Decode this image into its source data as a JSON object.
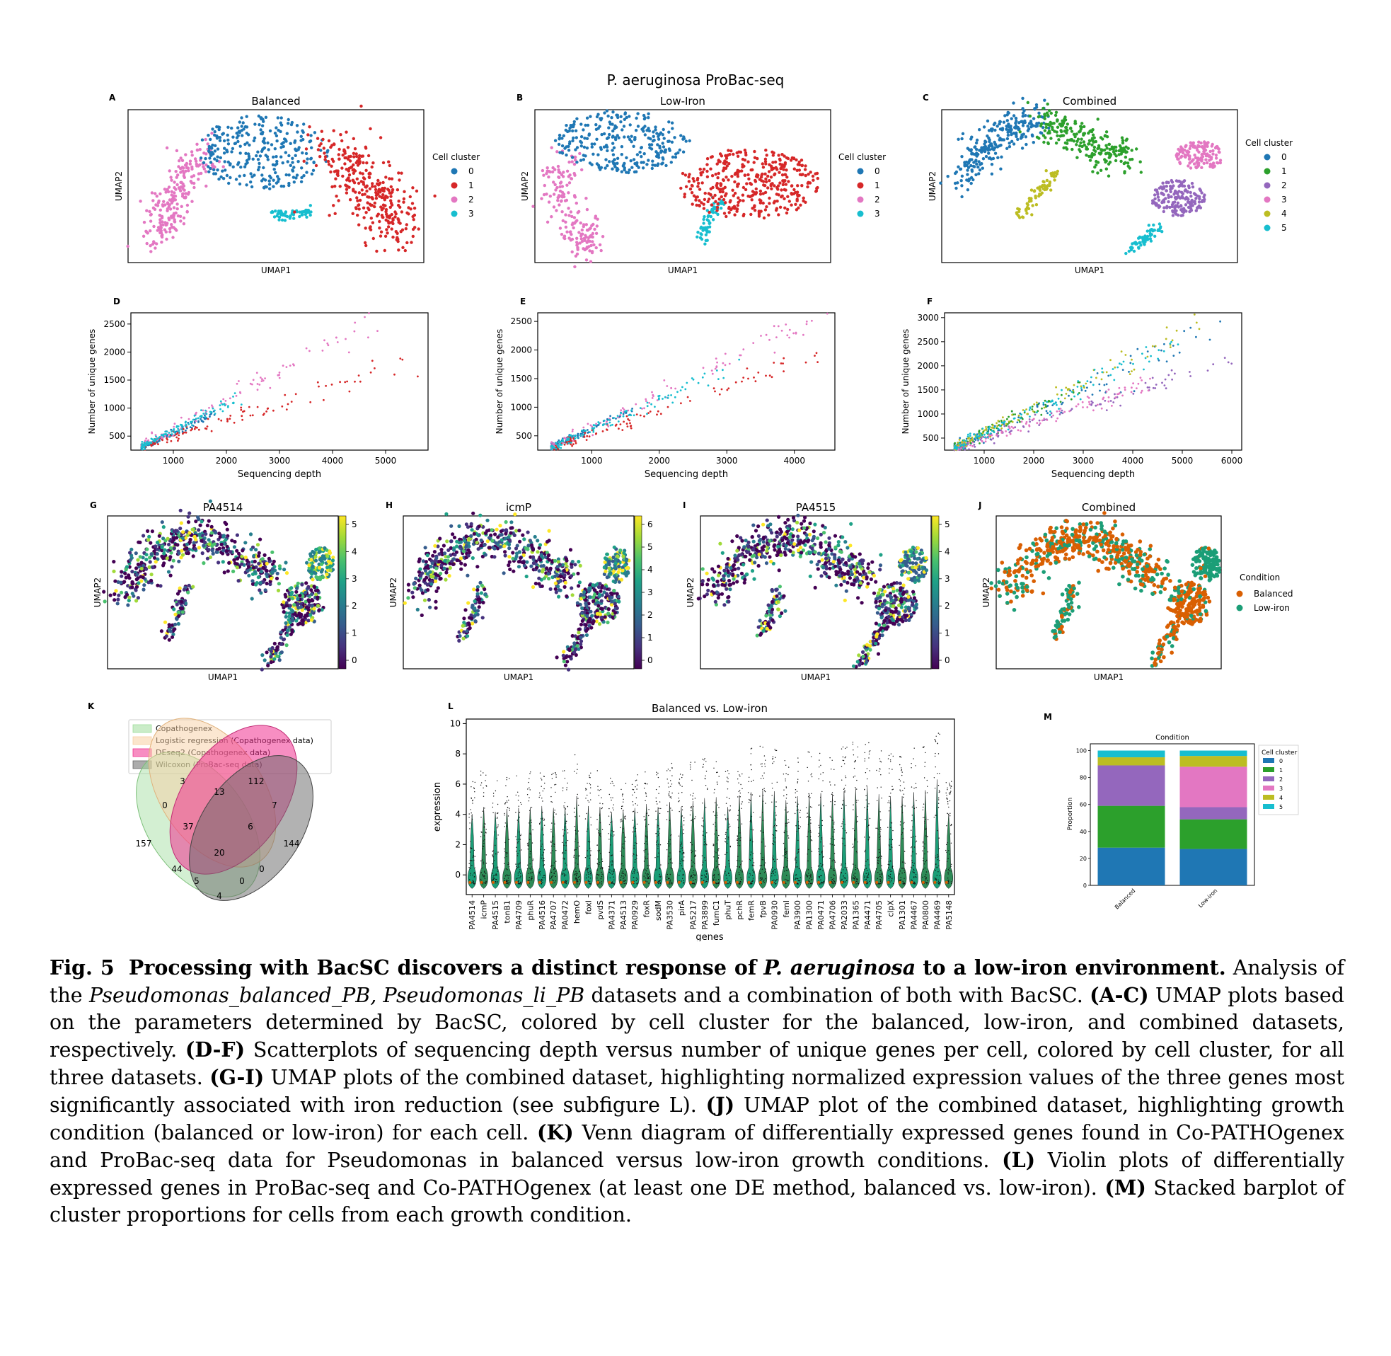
{
  "figure_title": "P. aeruginosa ProBac-seq",
  "panels": {
    "A": {
      "letter": "A",
      "title": "Balanced",
      "xlabel": "UMAP1",
      "ylabel": "UMAP2",
      "legend_title": "Cell cluster",
      "legend": [
        "0",
        "1",
        "2",
        "3"
      ]
    },
    "B": {
      "letter": "B",
      "title": "Low-Iron",
      "xlabel": "UMAP1",
      "ylabel": "UMAP2",
      "legend_title": "Cell cluster",
      "legend": [
        "0",
        "1",
        "2",
        "3"
      ]
    },
    "C": {
      "letter": "C",
      "title": "Combined",
      "xlabel": "UMAP1",
      "ylabel": "UMAP2",
      "legend_title": "Cell cluster",
      "legend": [
        "0",
        "1",
        "2",
        "3",
        "4",
        "5"
      ]
    },
    "D": {
      "letter": "D",
      "xlabel": "Sequencing depth",
      "ylabel": "Number of unique genes"
    },
    "E": {
      "letter": "E",
      "xlabel": "Sequencing depth",
      "ylabel": "Number of unique genes"
    },
    "F": {
      "letter": "F",
      "xlabel": "Sequencing depth",
      "ylabel": "Number of unique genes"
    },
    "G": {
      "letter": "G",
      "title": "PA4514",
      "xlabel": "UMAP1",
      "ylabel": "UMAP2",
      "cbar": [
        "0",
        "1",
        "2",
        "3",
        "4",
        "5"
      ]
    },
    "H": {
      "letter": "H",
      "title": "icmP",
      "xlabel": "UMAP1",
      "ylabel": "UMAP2",
      "cbar": [
        "0",
        "1",
        "2",
        "3",
        "4",
        "5",
        "6"
      ]
    },
    "I": {
      "letter": "I",
      "title": "PA4515",
      "xlabel": "UMAP1",
      "ylabel": "UMAP2",
      "cbar": [
        "0",
        "1",
        "2",
        "3",
        "4",
        "5"
      ]
    },
    "J": {
      "letter": "J",
      "title": "Combined",
      "xlabel": "UMAP1",
      "ylabel": "UMAP2",
      "legend_title": "Condition",
      "legend": [
        "Balanced",
        "Low-iron"
      ]
    },
    "K": {
      "letter": "K"
    },
    "L": {
      "letter": "L",
      "title": "Balanced vs. Low-iron",
      "xlabel": "genes",
      "ylabel": "expression"
    },
    "M": {
      "letter": "M",
      "title": "Condition",
      "ylabel": "Proportion",
      "legend_title": "Cell cluster",
      "legend": [
        "0",
        "1",
        "2",
        "3",
        "4",
        "5"
      ]
    }
  },
  "colors": {
    "c0": "#1f77b4",
    "c1": "#d62728",
    "c2": "#e377c2",
    "c3": "#17becf",
    "t0": "#1f77b4",
    "t1": "#2ca02c",
    "t2": "#9467bd",
    "t3": "#e377c2",
    "t4": "#bcbd22",
    "t5": "#17becf",
    "balanced": "#d95f02",
    "lowiron": "#1b9e77"
  },
  "venn": {
    "legend": [
      "Copathogenex",
      "Logistic regression (Copathogenex data)",
      "DEseq2 (Copathogenex data)",
      "Wilcoxon (ProBac-seq data)"
    ],
    "colors": [
      "#9edc9b",
      "#f7cfa3",
      "#f0328f",
      "#666666"
    ],
    "counts": [
      "3",
      "13",
      "112",
      "0",
      "7",
      "157",
      "37",
      "6",
      "144",
      "20",
      "44",
      "0",
      "5",
      "0",
      "4"
    ]
  },
  "chart_data": [
    {
      "panel": "D",
      "type": "scatter",
      "xlabel": "Sequencing depth",
      "ylabel": "Number of unique genes",
      "xlim": [
        200,
        5800
      ],
      "ylim": [
        250,
        2700
      ],
      "xticks": [
        "1000",
        "2000",
        "3000",
        "4000",
        "5000"
      ],
      "yticks": [
        "500",
        "1000",
        "1500",
        "2000",
        "2500"
      ],
      "series": [
        {
          "cluster": "0",
          "color": "#1f77b4",
          "slope": 0.44,
          "intercept": 120,
          "x_range": [
            400,
            1800
          ],
          "noise": 60
        },
        {
          "cluster": "1",
          "color": "#d62728",
          "slope": 0.3,
          "intercept": 190,
          "x_range": [
            400,
            5700
          ],
          "noise": 70
        },
        {
          "cluster": "2",
          "color": "#e377c2",
          "slope": 0.5,
          "intercept": 130,
          "x_range": [
            400,
            4900
          ],
          "noise": 100
        },
        {
          "cluster": "3",
          "color": "#17becf",
          "slope": 0.46,
          "intercept": 140,
          "x_range": [
            400,
            2300
          ],
          "noise": 60
        }
      ]
    },
    {
      "panel": "E",
      "type": "scatter",
      "xlabel": "Sequencing depth",
      "ylabel": "Number of unique genes",
      "xlim": [
        200,
        4600
      ],
      "ylim": [
        250,
        2650
      ],
      "xticks": [
        "1000",
        "2000",
        "3000",
        "4000"
      ],
      "yticks": [
        "500",
        "1000",
        "1500",
        "2000",
        "2500"
      ],
      "series": [
        {
          "cluster": "0",
          "color": "#1f77b4",
          "slope": 0.55,
          "intercept": 80,
          "x_range": [
            400,
            1600
          ],
          "noise": 50
        },
        {
          "cluster": "1",
          "color": "#d62728",
          "slope": 0.42,
          "intercept": 110,
          "x_range": [
            400,
            4400
          ],
          "noise": 60
        },
        {
          "cluster": "2",
          "color": "#e377c2",
          "slope": 0.58,
          "intercept": 80,
          "x_range": [
            400,
            4500
          ],
          "noise": 90
        },
        {
          "cluster": "3",
          "color": "#17becf",
          "slope": 0.52,
          "intercept": 90,
          "x_range": [
            400,
            3200
          ],
          "noise": 60
        }
      ]
    },
    {
      "panel": "F",
      "type": "scatter",
      "xlabel": "Sequencing depth",
      "ylabel": "Number of unique genes",
      "xlim": [
        200,
        6200
      ],
      "ylim": [
        250,
        3100
      ],
      "xticks": [
        "1000",
        "2000",
        "3000",
        "4000",
        "5000",
        "6000"
      ],
      "yticks": [
        "500",
        "1000",
        "1500",
        "2000",
        "2500",
        "3000"
      ],
      "series": [
        {
          "cluster": "0",
          "color": "#1f77b4",
          "slope": 0.47,
          "intercept": 100,
          "x_range": [
            400,
            5900
          ],
          "noise": 120
        },
        {
          "cluster": "1",
          "color": "#2ca02c",
          "slope": 0.5,
          "intercept": 90,
          "x_range": [
            400,
            3000
          ],
          "noise": 80
        },
        {
          "cluster": "2",
          "color": "#9467bd",
          "slope": 0.33,
          "intercept": 150,
          "x_range": [
            400,
            6000
          ],
          "noise": 70
        },
        {
          "cluster": "3",
          "color": "#e377c2",
          "slope": 0.34,
          "intercept": 140,
          "x_range": [
            400,
            4500
          ],
          "noise": 70
        },
        {
          "cluster": "4",
          "color": "#bcbd22",
          "slope": 0.52,
          "intercept": 90,
          "x_range": [
            400,
            5600
          ],
          "noise": 100
        },
        {
          "cluster": "5",
          "color": "#17becf",
          "slope": 0.49,
          "intercept": 100,
          "x_range": [
            400,
            5200
          ],
          "noise": 100
        }
      ]
    },
    {
      "panel": "L",
      "type": "violin",
      "title": "Balanced vs. Low-iron",
      "xlabel": "genes",
      "ylabel": "expression",
      "ylim": [
        -1.3,
        10.3
      ],
      "yticks": [
        "0",
        "2",
        "4",
        "6",
        "8",
        "10"
      ],
      "genes": [
        "PA4514",
        "icmP",
        "PA4515",
        "tonB1",
        "PA4709",
        "phuR",
        "PA4516",
        "PA4707",
        "PA0472",
        "hemO",
        "foxI",
        "pvdS",
        "PA4371",
        "PA4513",
        "PA0929",
        "foxR",
        "sodM",
        "PA3530",
        "pirA",
        "PA5217",
        "PA3899",
        "fumC1",
        "phuT",
        "pchR",
        "femR",
        "fpvB",
        "PA0930",
        "femI",
        "PA3900",
        "PA1300",
        "PA0471",
        "PA4706",
        "PA2033",
        "PA1365",
        "PA4471",
        "PA4705",
        "clpX",
        "PA1301",
        "PA4467",
        "PA0800",
        "PA4469",
        "PA5148"
      ],
      "max_expression": [
        6.2,
        6.9,
        6.4,
        6.7,
        6.8,
        6.9,
        7.0,
        6.8,
        6.9,
        8.0,
        7.0,
        6.9,
        6.4,
        6.6,
        6.8,
        7.2,
        6.9,
        7.4,
        6.9,
        7.5,
        7.8,
        7.9,
        6.9,
        8.1,
        8.4,
        8.6,
        8.5,
        7.6,
        8.0,
        8.2,
        8.3,
        8.2,
        8.5,
        8.8,
        9.0,
        8.2,
        8.0,
        8.0,
        8.4,
        8.6,
        9.7,
        6.2
      ]
    },
    {
      "panel": "M",
      "type": "bar",
      "stacked": true,
      "title": "Condition",
      "ylabel": "Proportion",
      "categories": [
        "Balanced",
        "Low-iron"
      ],
      "ylim": [
        0,
        105
      ],
      "yticks": [
        "0",
        "20",
        "40",
        "60",
        "80",
        "100"
      ],
      "series": [
        {
          "name": "0",
          "color": "#1f77b4",
          "values": [
            28,
            27
          ]
        },
        {
          "name": "1",
          "color": "#2ca02c",
          "values": [
            31,
            22
          ]
        },
        {
          "name": "2",
          "color": "#9467bd",
          "values": [
            30,
            9
          ]
        },
        {
          "name": "3",
          "color": "#e377c2",
          "values": [
            0,
            30
          ]
        },
        {
          "name": "4",
          "color": "#bcbd22",
          "values": [
            6,
            8
          ]
        },
        {
          "name": "5",
          "color": "#17becf",
          "values": [
            5,
            4
          ]
        }
      ]
    }
  ],
  "caption": {
    "fig": "Fig. 5",
    "title_pre": "Processing with BacSC discovers a distinct response of",
    "title_species": "P. aeruginosa",
    "title_post": "to a low-iron environment.",
    "s1_pre": "Analysis of the",
    "s1_ds1": "Pseudomonas_balanced_PB,",
    "s1_ds2": "Pseudomonas_li_PB",
    "s1_post": "datasets and a combination of both with BacSC.",
    "l_ac": "(A-C)",
    "t_ac": "UMAP plots based on the parameters determined by BacSC, colored by cell cluster for the balanced, low-iron, and combined datasets, respectively.",
    "l_df": "(D-F)",
    "t_df": "Scatterplots of sequencing depth versus number of unique genes per cell, colored by cell cluster, for all three datasets.",
    "l_gi": "(G-I)",
    "t_gi": "UMAP plots of the combined dataset, highlighting normalized expression values of the three genes most significantly associated with iron reduction (see subfigure L).",
    "l_j": "(J)",
    "t_j": "UMAP plot of the combined dataset, highlighting growth condition (balanced or low-iron) for each cell.",
    "l_k": "(K)",
    "t_k": "Venn diagram of differentially expressed genes found in Co-PATHOgenex and ProBac-seq data for Pseudomonas in balanced versus low-iron growth conditions.",
    "l_l": "(L)",
    "t_l": "Violin plots of differentially expressed genes in ProBac-seq and Co-PATHOgenex (at least one DE method, balanced vs. low-iron).",
    "l_m": "(M)",
    "t_m": "Stacked barplot of cluster proportions for cells from each growth condition."
  }
}
